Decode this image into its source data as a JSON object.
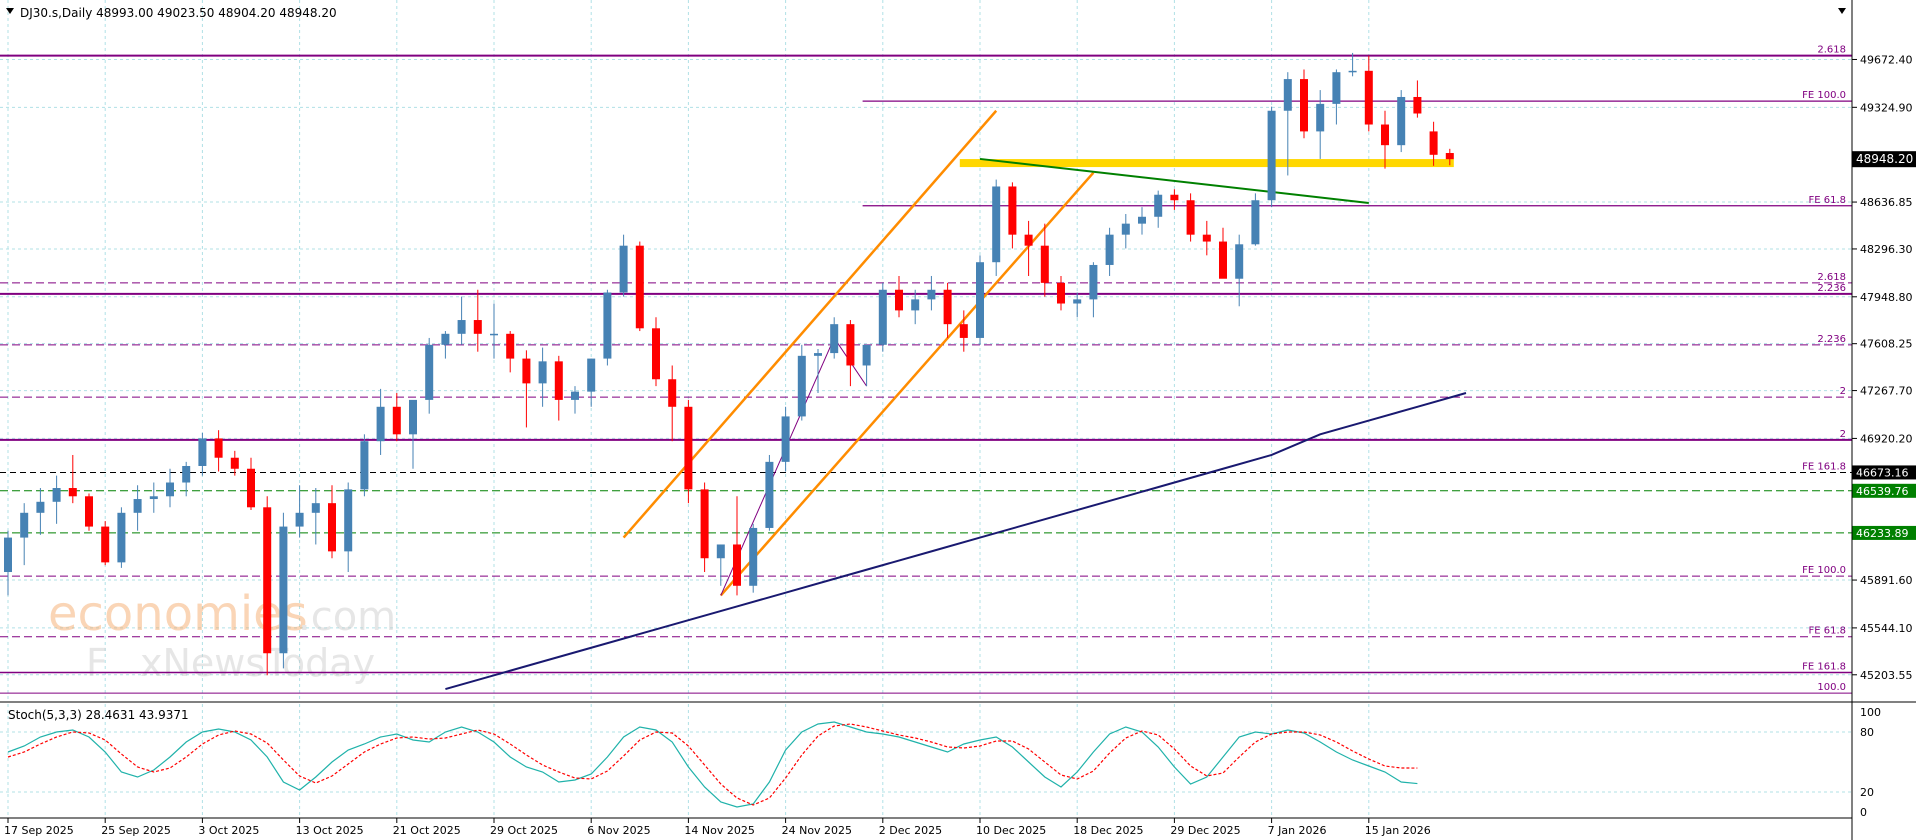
{
  "chart_data": {
    "type": "candlestick",
    "header": "DJ30.s,Daily  48993.00 49023.50 48904.20 48948.20",
    "current_price": 48948.2,
    "current_price_label": "48948.20",
    "ylim": [
      45035,
      49930
    ],
    "y_ticks": [
      "49672.40",
      "49324.90",
      "48636.85",
      "48296.30",
      "47948.80",
      "47608.25",
      "47267.70",
      "46920.20",
      "45891.60",
      "45544.10",
      "45203.55"
    ],
    "x_labels": [
      {
        "i": 0,
        "text": "17 Sep 2025"
      },
      {
        "i": 6,
        "text": "25 Sep 2025"
      },
      {
        "i": 12,
        "text": "3 Oct 2025"
      },
      {
        "i": 18,
        "text": "13 Oct 2025"
      },
      {
        "i": 24,
        "text": "21 Oct 2025"
      },
      {
        "i": 30,
        "text": "29 Oct 2025"
      },
      {
        "i": 36,
        "text": "6 Nov 2025"
      },
      {
        "i": 42,
        "text": "14 Nov 2025"
      },
      {
        "i": 48,
        "text": "24 Nov 2025"
      },
      {
        "i": 54,
        "text": "2 Dec 2025"
      },
      {
        "i": 60,
        "text": "10 Dec 2025"
      },
      {
        "i": 66,
        "text": "18 Dec 2025"
      },
      {
        "i": 72,
        "text": "29 Dec 2025"
      },
      {
        "i": 78,
        "text": "7 Jan 2026"
      },
      {
        "i": 84,
        "text": "15 Jan 2026"
      }
    ],
    "candles": [
      [
        45950,
        46250,
        45780,
        46200
      ],
      [
        46200,
        46450,
        46000,
        46380
      ],
      [
        46380,
        46560,
        46220,
        46460
      ],
      [
        46460,
        46650,
        46300,
        46560
      ],
      [
        46560,
        46800,
        46450,
        46500
      ],
      [
        46500,
        46520,
        46250,
        46280
      ],
      [
        46280,
        46320,
        46000,
        46020
      ],
      [
        46020,
        46420,
        45980,
        46380
      ],
      [
        46380,
        46580,
        46250,
        46480
      ],
      [
        46480,
        46600,
        46380,
        46500
      ],
      [
        46500,
        46700,
        46420,
        46600
      ],
      [
        46600,
        46750,
        46500,
        46720
      ],
      [
        46720,
        46960,
        46650,
        46920
      ],
      [
        46920,
        46980,
        46680,
        46780
      ],
      [
        46780,
        46830,
        46650,
        46700
      ],
      [
        46700,
        46780,
        46400,
        46420
      ],
      [
        46420,
        46500,
        45200,
        45360
      ],
      [
        45360,
        46380,
        45250,
        46280
      ],
      [
        46280,
        46580,
        46200,
        46380
      ],
      [
        46380,
        46560,
        46150,
        46450
      ],
      [
        46450,
        46580,
        46050,
        46100
      ],
      [
        46100,
        46600,
        45950,
        46550
      ],
      [
        46550,
        46950,
        46500,
        46900
      ],
      [
        46900,
        47280,
        46800,
        47150
      ],
      [
        47150,
        47250,
        46900,
        46950
      ],
      [
        46950,
        47180,
        46700,
        47200
      ],
      [
        47200,
        47650,
        47100,
        47600
      ],
      [
        47600,
        47700,
        47500,
        47680
      ],
      [
        47680,
        47950,
        47600,
        47780
      ],
      [
        47780,
        48000,
        47550,
        47680
      ],
      [
        47680,
        47900,
        47500,
        47680
      ],
      [
        47680,
        47700,
        47400,
        47500
      ],
      [
        47500,
        47560,
        47000,
        47320
      ],
      [
        47320,
        47580,
        47150,
        47480
      ],
      [
        47480,
        47520,
        47050,
        47200
      ],
      [
        47200,
        47300,
        47100,
        47260
      ],
      [
        47260,
        47500,
        47150,
        47500
      ],
      [
        47500,
        48000,
        47450,
        47980
      ],
      [
        47980,
        48400,
        47950,
        48320
      ],
      [
        48320,
        48350,
        47700,
        47720
      ],
      [
        47720,
        47800,
        47300,
        47350
      ],
      [
        47350,
        47450,
        46900,
        47150
      ],
      [
        47150,
        47200,
        46450,
        46550
      ],
      [
        46550,
        46600,
        45950,
        46050
      ],
      [
        46050,
        46150,
        45850,
        46150
      ],
      [
        46150,
        46500,
        45780,
        45850
      ],
      [
        45850,
        46300,
        45800,
        46270
      ],
      [
        46270,
        46800,
        46250,
        46750
      ],
      [
        46750,
        47150,
        46680,
        47080
      ],
      [
        47080,
        47600,
        47050,
        47520
      ],
      [
        47520,
        47570,
        47250,
        47540
      ],
      [
        47540,
        47800,
        47500,
        47750
      ],
      [
        47750,
        47780,
        47300,
        47450
      ],
      [
        47450,
        47600,
        47300,
        47600
      ],
      [
        47600,
        48050,
        47550,
        48000
      ],
      [
        48000,
        48100,
        47800,
        47850
      ],
      [
        47850,
        48000,
        47750,
        47930
      ],
      [
        47930,
        48100,
        47850,
        48000
      ],
      [
        48000,
        48050,
        47650,
        47750
      ],
      [
        47750,
        47850,
        47550,
        47650
      ],
      [
        47650,
        48250,
        47600,
        48200
      ],
      [
        48200,
        48800,
        48100,
        48750
      ],
      [
        48750,
        48780,
        48300,
        48400
      ],
      [
        48400,
        48500,
        48100,
        48320
      ],
      [
        48320,
        48480,
        47950,
        48050
      ],
      [
        48050,
        48100,
        47850,
        47900
      ],
      [
        47900,
        47980,
        47800,
        47930
      ],
      [
        47930,
        48200,
        47800,
        48180
      ],
      [
        48180,
        48450,
        48100,
        48400
      ],
      [
        48400,
        48550,
        48300,
        48480
      ],
      [
        48480,
        48600,
        48400,
        48530
      ],
      [
        48530,
        48720,
        48450,
        48690
      ],
      [
        48690,
        48730,
        48580,
        48650
      ],
      [
        48650,
        48700,
        48350,
        48400
      ],
      [
        48400,
        48500,
        48250,
        48350
      ],
      [
        48350,
        48450,
        48100,
        48080
      ],
      [
        48080,
        48400,
        47880,
        48330
      ],
      [
        48330,
        48700,
        48320,
        48650
      ],
      [
        48650,
        49330,
        48600,
        49300
      ],
      [
        49300,
        49580,
        48830,
        49530
      ],
      [
        49530,
        49600,
        49100,
        49150
      ],
      [
        49150,
        49450,
        48950,
        49350
      ],
      [
        49350,
        49600,
        49200,
        49580
      ],
      [
        49580,
        49720,
        49550,
        49590
      ],
      [
        49590,
        49700,
        49150,
        49200
      ],
      [
        49200,
        49300,
        48880,
        49050
      ],
      [
        49050,
        49450,
        49000,
        49400
      ],
      [
        49400,
        49520,
        49250,
        49280
      ],
      [
        49150,
        49220,
        48900,
        48980
      ],
      [
        48993,
        49023.5,
        48904.2,
        48948.2
      ]
    ],
    "ma": [
      [
        27,
        45100
      ],
      [
        30,
        45200
      ],
      [
        33,
        45300
      ],
      [
        36,
        45400
      ],
      [
        39,
        45500
      ],
      [
        42,
        45600
      ],
      [
        45,
        45700
      ],
      [
        48,
        45800
      ],
      [
        51,
        45900
      ],
      [
        54,
        46000
      ],
      [
        57,
        46100
      ],
      [
        60,
        46200
      ],
      [
        63,
        46300
      ],
      [
        66,
        46400
      ],
      [
        69,
        46500
      ],
      [
        72,
        46600
      ],
      [
        75,
        46700
      ],
      [
        78,
        46800
      ],
      [
        81,
        46950
      ],
      [
        84,
        47050
      ],
      [
        87,
        47150
      ],
      [
        90,
        47250
      ]
    ],
    "h_levels": [
      {
        "price": 49700,
        "color": "#800080",
        "width": 2,
        "dash": "",
        "start": 0,
        "label": "2.618"
      },
      {
        "price": 49370,
        "color": "#800080",
        "width": 1.2,
        "dash": "",
        "start": 53,
        "label": "FE 100.0"
      },
      {
        "price": 48610,
        "color": "#800080",
        "width": 1.2,
        "dash": "",
        "start": 53,
        "label": "FE 61.8"
      },
      {
        "price": 48050,
        "color": "#800080",
        "width": 1,
        "dash": "8,4",
        "start": 0,
        "label": "2.618"
      },
      {
        "price": 47970,
        "color": "#800080",
        "width": 2,
        "dash": "",
        "start": 0,
        "label": "2.236"
      },
      {
        "price": 47600,
        "color": "#800080",
        "width": 1,
        "dash": "8,4",
        "start": 0,
        "label": "2.236"
      },
      {
        "price": 47220,
        "color": "#800080",
        "width": 1,
        "dash": "8,4",
        "start": 0,
        "label": "2"
      },
      {
        "price": 46910,
        "color": "#800080",
        "width": 2,
        "dash": "",
        "start": 0,
        "label": "2"
      },
      {
        "price": 46673.16,
        "color": "#000000",
        "width": 1,
        "dash": "6,4",
        "start": 0,
        "label": "FE 161.8",
        "tag": "46673.16",
        "tagColor": "#000000"
      },
      {
        "price": 46539.76,
        "color": "#008000",
        "width": 1,
        "dash": "8,4",
        "start": 0,
        "label": "",
        "tag": "46539.76",
        "tagColor": "#008000"
      },
      {
        "price": 46233.89,
        "color": "#008000",
        "width": 1,
        "dash": "8,4",
        "start": 0,
        "label": "",
        "tag": "46233.89",
        "tagColor": "#008000"
      },
      {
        "price": 45920,
        "color": "#800080",
        "width": 1,
        "dash": "8,4",
        "start": 0,
        "label": "FE 100.0"
      },
      {
        "price": 45480,
        "color": "#800080",
        "width": 1,
        "dash": "8,4",
        "start": 0,
        "label": "FE 61.8"
      },
      {
        "price": 45220,
        "color": "#800080",
        "width": 1.5,
        "dash": "",
        "start": 0,
        "label": "FE 161.8"
      },
      {
        "price": 45070,
        "color": "#800080",
        "width": 1,
        "dash": "",
        "start": 0,
        "label": "100.0"
      }
    ],
    "channel_lines": [
      {
        "p1": [
          44,
          45780
        ],
        "p2": [
          67,
          48850
        ],
        "color": "#FF8C00",
        "width": 2.5
      },
      {
        "p1": [
          38,
          46200
        ],
        "p2": [
          61,
          49300
        ],
        "color": "#FF8C00",
        "width": 2.5
      }
    ],
    "trend_line": {
      "p1": [
        60,
        48950
      ],
      "p2": [
        84,
        48630
      ],
      "color": "#008000",
      "width": 2
    },
    "thin_lines": [
      {
        "p1": [
          44,
          45780
        ],
        "p2": [
          51,
          47650
        ],
        "color": "#800080"
      },
      {
        "p1": [
          51,
          47650
        ],
        "p2": [
          53,
          47300
        ],
        "color": "#800080"
      }
    ],
    "support_zone": {
      "i1": 59,
      "i2": 89,
      "price": 48920,
      "color": "#FFD700"
    },
    "watermark": {
      "line1": "economies",
      "line2_a": "F",
      "line2_b": "xNewsToday"
    },
    "stoch": {
      "title": "Stoch(5,3,3) 28.4631 43.9371",
      "levels": [
        "100",
        "80",
        "20",
        "0"
      ],
      "k": [
        60,
        66,
        75,
        80,
        82,
        75,
        60,
        40,
        35,
        42,
        55,
        70,
        80,
        83,
        80,
        72,
        55,
        30,
        22,
        35,
        50,
        62,
        68,
        75,
        78,
        72,
        70,
        80,
        85,
        80,
        70,
        55,
        45,
        40,
        30,
        32,
        38,
        55,
        75,
        85,
        82,
        70,
        45,
        25,
        10,
        5,
        8,
        30,
        62,
        80,
        88,
        90,
        85,
        80,
        78,
        75,
        70,
        65,
        60,
        68,
        72,
        75,
        65,
        50,
        35,
        25,
        40,
        60,
        78,
        85,
        80,
        65,
        45,
        28,
        35,
        55,
        75,
        80,
        78,
        82,
        79,
        70,
        60,
        52,
        46,
        40,
        30,
        28.46
      ],
      "d": [
        55,
        60,
        68,
        75,
        80,
        79,
        72,
        58,
        45,
        40,
        44,
        55,
        68,
        77,
        81,
        78,
        69,
        52,
        36,
        29,
        36,
        48,
        60,
        68,
        74,
        75,
        73,
        74,
        78,
        82,
        78,
        68,
        57,
        47,
        40,
        34,
        33,
        41,
        56,
        72,
        80,
        79,
        66,
        47,
        28,
        14,
        7,
        14,
        34,
        57,
        76,
        86,
        88,
        85,
        81,
        77,
        74,
        70,
        65,
        64,
        66,
        71,
        71,
        63,
        50,
        37,
        33,
        41,
        59,
        74,
        81,
        77,
        63,
        46,
        36,
        39,
        55,
        70,
        78,
        80,
        80,
        77,
        70,
        61,
        53,
        46,
        44,
        43.94
      ]
    },
    "colors": {
      "bull": "#4682B4",
      "bear": "#FF0000",
      "ma": "#191970",
      "grid": "#B0E0E6",
      "k": "#20B2AA",
      "d": "#FF0000"
    }
  }
}
